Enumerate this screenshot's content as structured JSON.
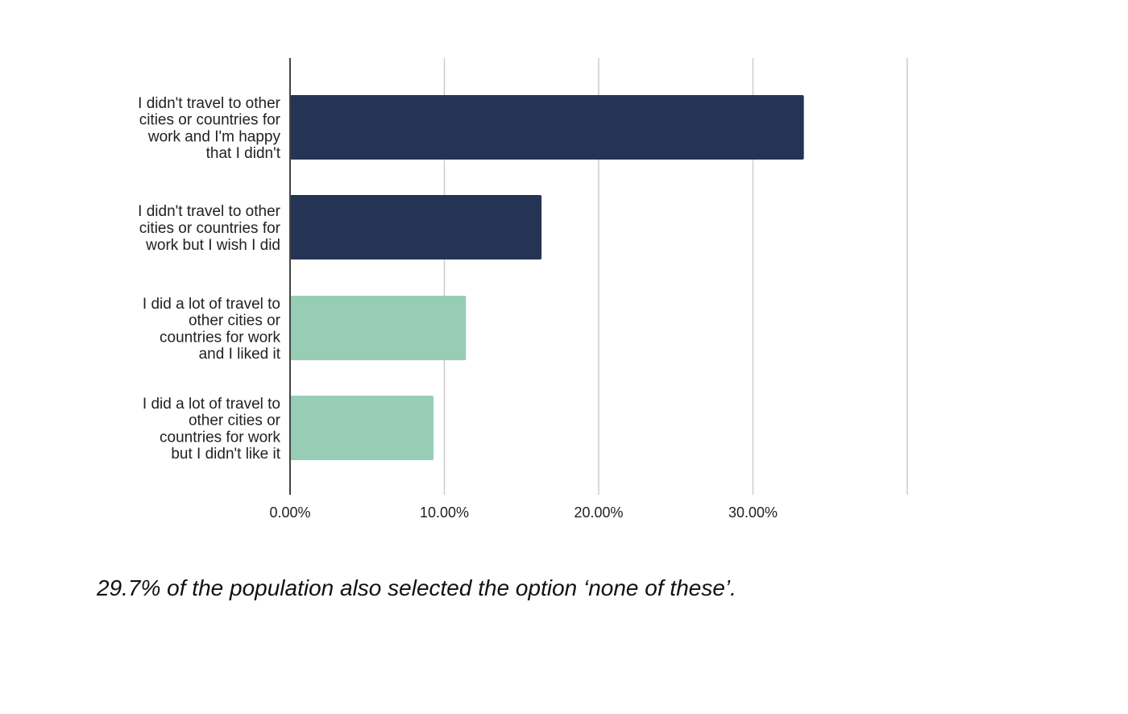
{
  "chart_data": {
    "type": "bar",
    "orientation": "horizontal",
    "categories": [
      [
        "I didn't travel to other",
        "cities or countries for",
        "work and I'm happy",
        "that I didn't"
      ],
      [
        "I didn't travel to other",
        "cities or countries for",
        "work but I wish I did"
      ],
      [
        "I did a lot of travel to",
        "other cities or",
        "countries for work",
        "and I liked it"
      ],
      [
        "I did a lot of travel to",
        "other cities or",
        "countries for work",
        "but I didn't like it"
      ]
    ],
    "values": [
      33.3,
      16.3,
      11.4,
      9.3
    ],
    "colors": [
      "#253454",
      "#253454",
      "#97cdb5",
      "#97cdb5"
    ],
    "xlim": [
      0,
      40
    ],
    "xticks": [
      0,
      10,
      20,
      30,
      40
    ],
    "xtick_labels": [
      "0.00%",
      "10.00%",
      "20.00%",
      "30.00%",
      ""
    ],
    "grid": true,
    "legend": "none",
    "title": "",
    "xlabel": "",
    "ylabel": ""
  },
  "footnote": "29.7% of the population also selected the option ‘none of these’."
}
